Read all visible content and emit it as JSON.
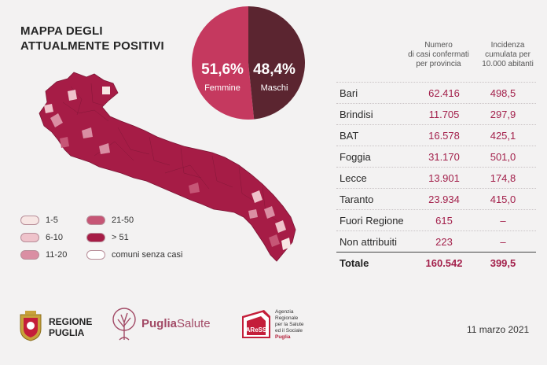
{
  "title": {
    "line1": "MAPPA DEGLI",
    "line2": "ATTUALMENTE POSITIVI"
  },
  "gender": {
    "female": {
      "pct": "51,6%",
      "label": "Femmine",
      "share": 51.6,
      "color": "#c5395f"
    },
    "male": {
      "pct": "48,4%",
      "label": "Maschi",
      "share": 48.4,
      "color": "#5b2530"
    }
  },
  "table": {
    "col1_header": [
      "Numero",
      "di casi confermati",
      "per provincia"
    ],
    "col2_header": [
      "Incidenza",
      "cumulata per",
      "10.000 abitanti"
    ],
    "rows": [
      {
        "name": "Bari",
        "cases": "62.416",
        "incidence": "498,5"
      },
      {
        "name": "Brindisi",
        "cases": "11.705",
        "incidence": "297,9"
      },
      {
        "name": "BAT",
        "cases": "16.578",
        "incidence": "425,1"
      },
      {
        "name": "Foggia",
        "cases": "31.170",
        "incidence": "501,0"
      },
      {
        "name": "Lecce",
        "cases": "13.901",
        "incidence": "174,8"
      },
      {
        "name": "Taranto",
        "cases": "23.934",
        "incidence": "415,0"
      },
      {
        "name": "Fuori Regione",
        "cases": "615",
        "incidence": "–"
      },
      {
        "name": "Non attribuiti",
        "cases": "223",
        "incidence": "–"
      }
    ],
    "total": {
      "name": "Totale",
      "cases": "160.542",
      "incidence": "399,5"
    }
  },
  "legend": [
    {
      "label": "1-5",
      "color": "#f7e6e4"
    },
    {
      "label": "21-50",
      "color": "#c65676"
    },
    {
      "label": "6-10",
      "color": "#efc3cb"
    },
    {
      "label": "> 51",
      "color": "#a61c46"
    },
    {
      "label": "11-20",
      "color": "#da8ea3"
    },
    {
      "label": "comuni senza casi",
      "color": "#ffffff"
    }
  ],
  "footer": {
    "regione": {
      "line1": "REGIONE",
      "line2": "PUGLIA"
    },
    "puglia_salute": {
      "bold": "Puglia",
      "light": "Salute"
    },
    "aress": {
      "mark": "AReSS",
      "lines": [
        "Agenzia",
        "Regionale",
        "per la Salute",
        "ed il Sociale"
      ],
      "puglia": "Puglia"
    },
    "date": "11 marzo 2021"
  },
  "colors": {
    "accent": "#a61c46",
    "dark": "#5b2530",
    "background": "#f3f2f2"
  }
}
